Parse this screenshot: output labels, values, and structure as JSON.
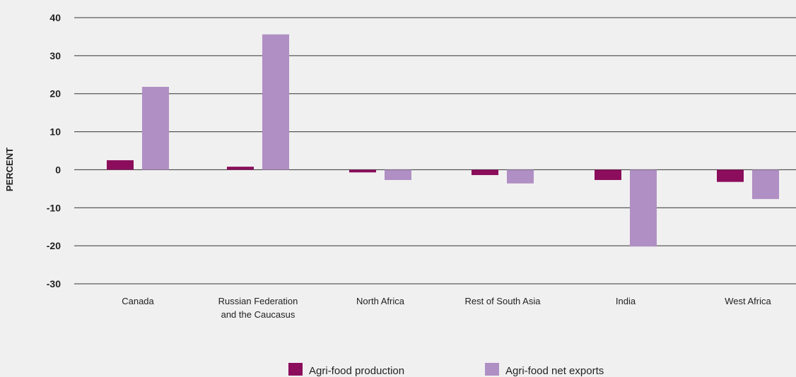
{
  "chart_data": {
    "type": "bar",
    "title": "",
    "xlabel": "",
    "ylabel": "PERCENT",
    "ylim": [
      -30,
      40
    ],
    "yticks": [
      40,
      30,
      20,
      10,
      0,
      -10,
      -20,
      -30
    ],
    "grid": true,
    "legend_position": "bottom",
    "categories": [
      [
        "Canada"
      ],
      [
        "Russian Federation",
        "and the Caucasus"
      ],
      [
        "North Africa"
      ],
      [
        "Rest of South Asia"
      ],
      [
        "India"
      ],
      [
        "West Africa"
      ]
    ],
    "series": [
      {
        "name": "Agri-food production",
        "color": "#8b0d5c",
        "values": [
          2.5,
          0.8,
          -0.7,
          -1.4,
          -2.7,
          -3.2
        ]
      },
      {
        "name": "Agri-food net exports",
        "color": "#b08fc4",
        "values": [
          21.8,
          35.6,
          -2.7,
          -3.6,
          -20.2,
          -7.7
        ]
      }
    ]
  }
}
